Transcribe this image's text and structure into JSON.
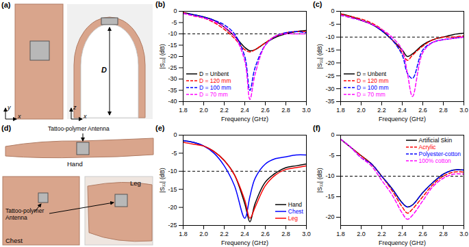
{
  "chart_data": [
    {
      "type": "line",
      "title": "(b)",
      "x_label": "Frequency (GHz)",
      "y_label": "|S₁₁| (dB)",
      "x": [
        1.8,
        1.9,
        2.0,
        2.1,
        2.2,
        2.3,
        2.4,
        2.45,
        2.5,
        2.6,
        2.7,
        2.8,
        2.9,
        3.0
      ],
      "xlim": [
        1.8,
        3.0
      ],
      "xticks": [
        1.8,
        {
          "value": 2,
          "label": "2.0"
        },
        2.2,
        2.4,
        2.6,
        2.8,
        {
          "value": 3,
          "label": "3.0"
        }
      ],
      "ylim": [
        -40,
        0
      ],
      "yticks": [
        0,
        -5,
        -10,
        -15,
        -20,
        -25,
        -30,
        -35,
        -40
      ],
      "hline": -10,
      "legend": "lower left",
      "series": [
        {
          "name": "D = Unbent",
          "color": "#000000",
          "line_style": "solid",
          "values": [
            -0.5,
            -1.5,
            -2.5,
            -4,
            -7,
            -11,
            -16,
            -17.5,
            -17,
            -14,
            -11.5,
            -10,
            -9,
            -8.5
          ]
        },
        {
          "name": "D = 120 mm",
          "color": "#ff0000",
          "line_style": "dashed",
          "values": [
            -0.5,
            -2,
            -3,
            -5,
            -8,
            -12,
            -17,
            -18,
            -17,
            -14,
            -11,
            -9.5,
            -9,
            -9
          ]
        },
        {
          "name": "D = 100 mm",
          "color": "#0000ff",
          "line_style": "dashed",
          "values": [
            -1,
            -1.5,
            -2.5,
            -4,
            -6,
            -10,
            -20,
            -35,
            -25,
            -15,
            -11,
            -9.5,
            -9,
            -9.5
          ]
        },
        {
          "name": "D = 70 mm",
          "color": "#ff00ff",
          "line_style": "dashed",
          "values": [
            -1,
            -2,
            -3,
            -4.5,
            -7,
            -11,
            -22,
            -39,
            -28,
            -15,
            -11,
            -10,
            -10,
            -10
          ]
        }
      ]
    },
    {
      "type": "line",
      "title": "(c)",
      "x_label": "Frequency (GHz)",
      "y_label": "|S₁₁| (dB)",
      "x": [
        1.8,
        1.9,
        2.0,
        2.1,
        2.2,
        2.3,
        2.4,
        2.45,
        2.5,
        2.6,
        2.7,
        2.8,
        2.9,
        3.0
      ],
      "xlim": [
        1.8,
        3.0
      ],
      "xticks": [
        1.8,
        {
          "value": 2,
          "label": "2.0"
        },
        2.2,
        2.4,
        2.6,
        2.8,
        {
          "value": 3,
          "label": "3.0"
        }
      ],
      "ylim": [
        -35,
        0
      ],
      "yticks": [
        0,
        -5,
        -10,
        -15,
        -20,
        -25,
        -30,
        -35
      ],
      "hline": -10,
      "legend": "lower left",
      "series": [
        {
          "name": "D = Unbent",
          "color": "#000000",
          "line_style": "solid",
          "values": [
            -1,
            -2,
            -3.5,
            -5,
            -7.5,
            -11,
            -15,
            -17.5,
            -16.5,
            -13,
            -11,
            -10,
            -9,
            -8.5
          ]
        },
        {
          "name": "D = 120 mm",
          "color": "#ff0000",
          "line_style": "dashed",
          "values": [
            -1,
            -2,
            -3,
            -4.5,
            -7,
            -11,
            -16,
            -19,
            -17,
            -13.5,
            -11,
            -10,
            -10,
            -9.5
          ]
        },
        {
          "name": "D = 100 mm",
          "color": "#0000ff",
          "line_style": "dashed",
          "values": [
            -1.5,
            -2.5,
            -3.5,
            -5,
            -7.5,
            -11,
            -17,
            -24,
            -26,
            -15,
            -12,
            -11,
            -10.5,
            -10
          ]
        },
        {
          "name": "D = 70 mm",
          "color": "#ff00ff",
          "line_style": "dashed",
          "values": [
            -1.5,
            -2.5,
            -3.5,
            -5,
            -7,
            -10,
            -15,
            -24,
            -33,
            -16,
            -12,
            -11,
            -10.5,
            -10
          ]
        }
      ]
    },
    {
      "type": "line",
      "title": "(e)",
      "x_label": "Frequency (GHz)",
      "y_label": "|S₁₁| (dB)",
      "x": [
        1.8,
        1.9,
        2.0,
        2.1,
        2.2,
        2.3,
        2.4,
        2.45,
        2.5,
        2.6,
        2.7,
        2.8,
        2.9,
        3.0
      ],
      "xlim": [
        1.8,
        3.0
      ],
      "xticks": [
        1.8,
        {
          "value": 2,
          "label": "2.0"
        },
        2.2,
        2.4,
        2.6,
        2.8,
        {
          "value": 3,
          "label": "3.0"
        }
      ],
      "ylim": [
        -25,
        0
      ],
      "yticks": [
        0,
        -5,
        -10,
        -15,
        -20,
        -25
      ],
      "hline": -10,
      "legend": "lower right",
      "series": [
        {
          "name": "Hand",
          "color": "#000000",
          "line_style": "solid",
          "values": [
            -1.5,
            -2,
            -3,
            -4.5,
            -7,
            -11,
            -19,
            -24,
            -19,
            -13,
            -10.5,
            -9,
            -8.5,
            -8
          ]
        },
        {
          "name": "Chest",
          "color": "#0000ff",
          "line_style": "solid",
          "values": [
            -1.5,
            -2,
            -3,
            -5,
            -8.5,
            -14,
            -23,
            -17,
            -12,
            -8,
            -6.5,
            -6,
            -5.5,
            -5.5
          ]
        },
        {
          "name": "Leg",
          "color": "#ff0000",
          "line_style": "solid",
          "values": [
            -2,
            -2.5,
            -3,
            -4.5,
            -7,
            -11,
            -18,
            -23,
            -20,
            -14,
            -11,
            -9.5,
            -9,
            -8.5
          ]
        }
      ]
    },
    {
      "type": "line",
      "title": "(f)",
      "x_label": "Frequency (GHz)",
      "y_label": "|S₁₁| (dB)",
      "x": [
        1.8,
        1.9,
        2.0,
        2.1,
        2.2,
        2.3,
        2.4,
        2.45,
        2.5,
        2.6,
        2.7,
        2.8,
        2.9,
        3.0
      ],
      "xlim": [
        1.8,
        3.0
      ],
      "xticks": [
        1.8,
        {
          "value": 2,
          "label": "2.0"
        },
        2.2,
        2.4,
        2.6,
        2.8,
        {
          "value": 3,
          "label": "3.0"
        }
      ],
      "ylim": [
        -22,
        0
      ],
      "yticks": [
        0,
        -5,
        -10,
        -15,
        -20
      ],
      "hline": -10,
      "legend": "upper right",
      "series": [
        {
          "name": "Artificial Skin",
          "color": "#000000",
          "line_style": "solid",
          "values": [
            -1,
            -3,
            -5,
            -7,
            -10,
            -13,
            -16.5,
            -17.5,
            -17,
            -14,
            -11.5,
            -9.5,
            -8.5,
            -8.5
          ]
        },
        {
          "name": "Acrylic",
          "color": "#ff0000",
          "line_style": "dashed",
          "values": [
            -1,
            -3,
            -5,
            -7,
            -10,
            -13.5,
            -17.5,
            -19,
            -18,
            -15,
            -12,
            -10,
            -9,
            -9
          ]
        },
        {
          "name": "Polyester-cotton",
          "color": "#0000ff",
          "line_style": "dashed",
          "values": [
            -1,
            -3,
            -5.5,
            -7,
            -10,
            -13,
            -16.5,
            -17.5,
            -17,
            -14,
            -11.5,
            -9.5,
            -8.5,
            -8.5
          ]
        },
        {
          "name": "100% cotton",
          "color": "#ff00ff",
          "line_style": "dashed",
          "values": [
            -1,
            -3,
            -5.5,
            -7.5,
            -11,
            -14.5,
            -19,
            -20.5,
            -19.5,
            -16,
            -12.5,
            -10.5,
            -9.5,
            -9.5
          ]
        }
      ]
    }
  ],
  "photo_panels": [
    {
      "label": "(a)",
      "dimension": "D",
      "axes": [
        [
          "y",
          "x"
        ],
        [
          "z",
          "x"
        ]
      ]
    },
    {
      "label": "(d)",
      "callouts": [
        "Tattoo-polymer Antenna",
        "Tattoo-polymer Antenna"
      ],
      "locations": [
        "Hand",
        "Chest",
        "Leg"
      ]
    }
  ]
}
